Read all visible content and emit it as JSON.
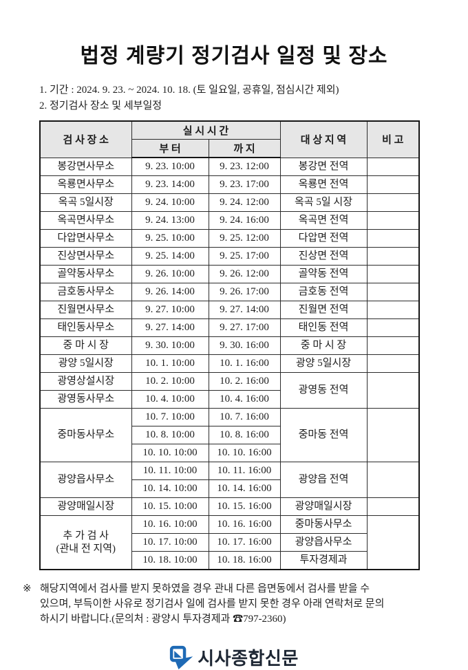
{
  "title": "법정 계량기 정기검사 일정 및 장소",
  "intro": {
    "period": "1. 기간 : 2024. 9. 23. ~ 2024. 10. 18. (토 일요일, 공휴일, 점심시간 제외)",
    "schedule": "2. 정기검사 장소 및 세부일정"
  },
  "table": {
    "header": {
      "place": "검 사 장 소",
      "time": "실 시 시 간",
      "from": "부 터",
      "to": "까 지",
      "area": "대 상 지 역",
      "note": "비 고"
    },
    "rows": [
      [
        "봉강면사무소",
        "9. 23. 10:00",
        "9. 23. 12:00",
        "봉강면 전역",
        ""
      ],
      [
        "옥룡면사무소",
        "9. 23. 14:00",
        "9. 23. 17:00",
        "옥룡면 전역",
        ""
      ],
      [
        "옥곡 5일시장",
        "9. 24. 10:00",
        "9. 24. 12:00",
        "옥곡 5일 시장",
        ""
      ],
      [
        "옥곡면사무소",
        "9. 24. 13:00",
        "9. 24. 16:00",
        "옥곡면 전역",
        ""
      ],
      [
        "다압면사무소",
        "9. 25. 10:00",
        "9. 25. 12:00",
        "다압면 전역",
        ""
      ],
      [
        "진상면사무소",
        "9. 25. 14:00",
        "9. 25. 17:00",
        "진상면 전역",
        ""
      ],
      [
        "골약동사무소",
        "9. 26. 10:00",
        "9. 26. 12:00",
        "골약동 전역",
        ""
      ],
      [
        "금호동사무소",
        "9. 26. 14:00",
        "9. 26. 17:00",
        "금호동 전역",
        ""
      ],
      [
        "진월면사무소",
        "9. 27. 10:00",
        "9. 27. 14:00",
        "진월면 전역",
        ""
      ],
      [
        "태인동사무소",
        "9. 27. 14:00",
        "9. 27. 17:00",
        "태인동 전역",
        ""
      ],
      [
        "중 마 시 장",
        "9. 30. 10:00",
        "9. 30. 16:00",
        "중 마 시 장",
        ""
      ],
      [
        "광양 5일시장",
        "10. 1. 10:00",
        "10. 1. 16:00",
        "광양 5일시장",
        ""
      ],
      [
        "광영상설시장",
        "10. 2. 10:00",
        "10. 2. 16:00",
        {
          "t": "광영동 전역",
          "rs": 2
        },
        {
          "t": "",
          "rs": 2
        }
      ],
      [
        "광영동사무소",
        "10. 4. 10:00",
        "10. 4. 16:00",
        null,
        null
      ],
      [
        {
          "t": "중마동사무소",
          "rs": 3
        },
        "10. 7. 10:00",
        "10. 7. 16:00",
        {
          "t": "중마동 전역",
          "rs": 3
        },
        {
          "t": "",
          "rs": 3
        }
      ],
      [
        null,
        "10. 8. 10:00",
        "10. 8. 16:00",
        null,
        null
      ],
      [
        null,
        "10. 10. 10:00",
        "10. 10. 16:00",
        null,
        null
      ],
      [
        {
          "t": "광양읍사무소",
          "rs": 2
        },
        "10. 11. 10:00",
        "10. 11. 16:00",
        {
          "t": "광양읍 전역",
          "rs": 2
        },
        {
          "t": "",
          "rs": 2
        }
      ],
      [
        null,
        "10. 14. 10:00",
        "10. 14. 16:00",
        null,
        null
      ],
      [
        "광양매일시장",
        "10. 15. 10:00",
        "10. 15. 16:00",
        "광양매일시장",
        ""
      ],
      [
        {
          "t": "추 가 검 사\n(관내 전 지역)",
          "rs": 3
        },
        "10. 16. 10:00",
        "10. 16. 16:00",
        "중마동사무소",
        {
          "t": "",
          "rs": 3
        }
      ],
      [
        null,
        "10. 17. 10:00",
        "10. 17. 16:00",
        "광양읍사무소",
        null
      ],
      [
        null,
        "10. 18. 10:00",
        "10. 18. 16:00",
        "투자경제과",
        null
      ]
    ]
  },
  "note": {
    "marker": "※",
    "lines": [
      "해당지역에서 검사를 받지 못하였을 경우 관내 다른 읍면동에서 검사를 받을 수",
      "있으며, 부득이한 사유로 정기검사 일에 검사를 받지 못한 경우 아래 연락처로 문의",
      "하시기 바랍니다.(문의처 : 광양시 투자경제과 ☎797-2360)"
    ]
  },
  "logo": {
    "text": "시사종합신문",
    "color": "#1e6ab5"
  },
  "colors": {
    "header_bg": "#e6e6e6",
    "border": "#2b2b2b",
    "text": "#1a1a1a",
    "logo_blue": "#1e6ab5",
    "logo_text": "#1d2633"
  }
}
